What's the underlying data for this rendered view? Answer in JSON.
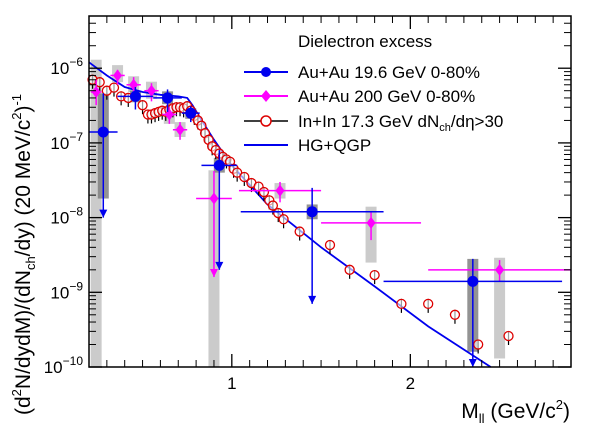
{
  "chart_data": {
    "type": "scatter",
    "title": "",
    "xlabel_main": "M",
    "xlabel_sub": "ll",
    "xlabel_unit_pre": " (GeV/c",
    "xlabel_unit_sup": "2",
    "xlabel_unit_post": ")",
    "ylabel_parts": {
      "p1": "(d",
      "p1_sup": "2",
      "p2": "N/dydM)/(dN",
      "p2_sub": "ch",
      "p3": "/dy)  (20 MeV/c",
      "p3_sup": "2",
      "p3_post": ")",
      "p3_sup2": "-1"
    },
    "xlim": [
      0.2,
      2.9
    ],
    "ylim": [
      1e-10,
      5e-06
    ],
    "yscale": "log",
    "xticks": [
      1,
      2
    ],
    "xtick_labels": [
      "1",
      "2"
    ],
    "ytick_labels": [
      {
        "base": "10",
        "exp": "−10",
        "value": 1e-10
      },
      {
        "base": "10",
        "exp": "−9",
        "value": 1e-09
      },
      {
        "base": "10",
        "exp": "−8",
        "value": 1e-08
      },
      {
        "base": "10",
        "exp": "−7",
        "value": 1e-07
      },
      {
        "base": "10",
        "exp": "−6",
        "value": 1e-06
      }
    ],
    "legend": {
      "title": "Dielectron excess",
      "position": "top-right",
      "entries": [
        {
          "label": "Au+Au 19.6 GeV 0-80%",
          "series": "auau196"
        },
        {
          "label": "Au+Au 200 GeV 0-80%",
          "series": "auau200"
        },
        {
          "label_pre": "In+In 17.3 GeV dN",
          "label_sub": "ch",
          "label_post": "/dη>30",
          "series": "inin"
        },
        {
          "label": "HG+QGP",
          "series": "model"
        }
      ]
    },
    "series": [
      {
        "id": "auau196",
        "color": "#0000ee",
        "marker": "circle-filled",
        "points": [
          {
            "x": 0.28,
            "y": 1.4e-07,
            "xerr": 0.08,
            "ylo": 1e-08,
            "yhi": 4.6e-07,
            "arrow": true,
            "sys": [
              1.8e-08,
              4.6e-07
            ]
          },
          {
            "x": 0.46,
            "y": 4.2e-07,
            "xerr": 0.1,
            "ylo": 2.8e-07,
            "yhi": 5.6e-07,
            "sys": [
              3.5e-07,
              5e-07
            ]
          },
          {
            "x": 0.64,
            "y": 4e-07,
            "xerr": 0.08,
            "ylo": 2.6e-07,
            "yhi": 5.2e-07,
            "sys": [
              3.3e-07,
              4.9e-07
            ]
          },
          {
            "x": 0.77,
            "y": 2.5e-07,
            "xerr": 0.05,
            "ylo": 1.9e-07,
            "yhi": 3.1e-07,
            "sys": [
              2.1e-07,
              2.9e-07
            ]
          },
          {
            "x": 0.93,
            "y": 5e-08,
            "xerr": 0.1,
            "ylo": 2e-09,
            "yhi": 8e-08,
            "arrow": true,
            "sys": [
              4e-08,
              6.3e-08
            ]
          },
          {
            "x": 1.45,
            "y": 1.2e-08,
            "xerr": 0.4,
            "ylo": 7e-10,
            "yhi": 2.5e-08,
            "arrow": true,
            "sys": [
              9.5e-09,
              1.5e-08
            ]
          },
          {
            "x": 2.35,
            "y": 1.4e-09,
            "xerr": 0.5,
            "ylo": 8e-11,
            "yhi": 2.8e-09,
            "arrow": true,
            "sys": [
              1.6e-10,
              2.8e-09
            ]
          }
        ]
      },
      {
        "id": "auau200",
        "color": "#ff00ff",
        "marker": "diamond-filled",
        "points": [
          {
            "x": 0.24,
            "y": 4.8e-07,
            "xerr": 0.03,
            "ylo": 3.2e-07,
            "yhi": 7e-07,
            "sys": [
              1e-10,
              1.3e-06
            ]
          },
          {
            "x": 0.36,
            "y": 8e-07,
            "xerr": 0.04,
            "ylo": 6e-07,
            "yhi": 9.5e-07,
            "sys": [
              6.5e-07,
              1.1e-06
            ]
          },
          {
            "x": 0.45,
            "y": 6e-07,
            "xerr": 0.04,
            "ylo": 4.4e-07,
            "yhi": 7.6e-07,
            "sys": [
              4.8e-07,
              7.8e-07
            ]
          },
          {
            "x": 0.55,
            "y": 5e-07,
            "xerr": 0.04,
            "ylo": 3.6e-07,
            "yhi": 6.3e-07,
            "sys": [
              3.9e-07,
              6.6e-07
            ]
          },
          {
            "x": 0.65,
            "y": 2.4e-07,
            "xerr": 0.04,
            "ylo": 1.8e-07,
            "yhi": 3e-07,
            "sys": [
              1.8e-07,
              3.1e-07
            ]
          },
          {
            "x": 0.71,
            "y": 1.5e-07,
            "xerr": 0.04,
            "ylo": 1.1e-07,
            "yhi": 1.9e-07,
            "sys": [
              1.2e-07,
              1.9e-07
            ]
          },
          {
            "x": 0.9,
            "y": 1.8e-08,
            "xerr": 0.1,
            "ylo": 1.6e-09,
            "yhi": 4.2e-08,
            "arrow": true,
            "sys": [
              1e-10,
              4.3e-08
            ]
          },
          {
            "x": 1.27,
            "y": 2.3e-08,
            "xerr": 0.23,
            "ylo": 1.6e-08,
            "yhi": 3e-08,
            "sys": [
              1.8e-08,
              2.9e-08
            ]
          },
          {
            "x": 1.78,
            "y": 8.5e-09,
            "xerr": 0.28,
            "ylo": 5e-09,
            "yhi": 1.2e-08,
            "sys": [
              2.5e-09,
              1.4e-08
            ]
          },
          {
            "x": 2.5,
            "y": 2e-09,
            "xerr": 0.4,
            "ylo": 1.4e-09,
            "yhi": 2.7e-09,
            "sys": [
              1.3e-10,
              2.9e-09
            ]
          }
        ]
      },
      {
        "id": "inin",
        "color": "#dd0000",
        "marker": "circle-open",
        "points": [
          {
            "x": 0.22,
            "y": 7e-07
          },
          {
            "x": 0.26,
            "y": 6.5e-07
          },
          {
            "x": 0.3,
            "y": 5e-07
          },
          {
            "x": 0.34,
            "y": 5.5e-07
          },
          {
            "x": 0.38,
            "y": 4.2e-07
          },
          {
            "x": 0.42,
            "y": 4e-07
          },
          {
            "x": 0.5,
            "y": 3.2e-07
          },
          {
            "x": 0.53,
            "y": 2.4e-07
          },
          {
            "x": 0.55,
            "y": 2.4e-07
          },
          {
            "x": 0.57,
            "y": 2.5e-07
          },
          {
            "x": 0.59,
            "y": 2.6e-07
          },
          {
            "x": 0.61,
            "y": 2.7e-07
          },
          {
            "x": 0.63,
            "y": 2.6e-07
          },
          {
            "x": 0.65,
            "y": 2.8e-07
          },
          {
            "x": 0.67,
            "y": 2.9e-07
          },
          {
            "x": 0.69,
            "y": 3e-07
          },
          {
            "x": 0.71,
            "y": 3e-07
          },
          {
            "x": 0.73,
            "y": 2.9e-07
          },
          {
            "x": 0.75,
            "y": 3.1e-07
          },
          {
            "x": 0.77,
            "y": 2.7e-07
          },
          {
            "x": 0.79,
            "y": 2.3e-07
          },
          {
            "x": 0.81,
            "y": 2e-07
          },
          {
            "x": 0.83,
            "y": 1.7e-07
          },
          {
            "x": 0.85,
            "y": 1.35e-07
          },
          {
            "x": 0.87,
            "y": 1.1e-07
          },
          {
            "x": 0.89,
            "y": 9e-08
          },
          {
            "x": 0.91,
            "y": 8e-08
          },
          {
            "x": 0.93,
            "y": 7.2e-08
          },
          {
            "x": 0.95,
            "y": 6.5e-08
          },
          {
            "x": 0.97,
            "y": 6e-08
          },
          {
            "x": 0.99,
            "y": 5.6e-08
          },
          {
            "x": 1.01,
            "y": 4.5e-08
          },
          {
            "x": 1.03,
            "y": 4e-08
          },
          {
            "x": 1.07,
            "y": 3.5e-08
          },
          {
            "x": 1.11,
            "y": 2.9e-08
          },
          {
            "x": 1.15,
            "y": 2.6e-08
          },
          {
            "x": 1.18,
            "y": 2.2e-08
          },
          {
            "x": 1.21,
            "y": 1.7e-08
          },
          {
            "x": 1.23,
            "y": 1.45e-08
          },
          {
            "x": 1.26,
            "y": 1.15e-08
          },
          {
            "x": 1.29,
            "y": 9.5e-09
          },
          {
            "x": 1.38,
            "y": 6.5e-09
          },
          {
            "x": 1.55,
            "y": 4.3e-09
          },
          {
            "x": 1.66,
            "y": 2e-09
          },
          {
            "x": 1.8,
            "y": 1.7e-09
          },
          {
            "x": 1.95,
            "y": 7e-10
          },
          {
            "x": 2.1,
            "y": 7e-10
          },
          {
            "x": 2.25,
            "y": 5e-10
          },
          {
            "x": 2.38,
            "y": 2e-10
          },
          {
            "x": 2.55,
            "y": 2.6e-10
          }
        ]
      },
      {
        "id": "model",
        "color": "#0000ee",
        "marker": "line",
        "points": [
          {
            "x": 0.2,
            "y": 1.2e-06
          },
          {
            "x": 0.3,
            "y": 8e-07
          },
          {
            "x": 0.4,
            "y": 5.6e-07
          },
          {
            "x": 0.5,
            "y": 4.8e-07
          },
          {
            "x": 0.6,
            "y": 4.4e-07
          },
          {
            "x": 0.7,
            "y": 4.2e-07
          },
          {
            "x": 0.75,
            "y": 4e-07
          },
          {
            "x": 0.78,
            "y": 3.2e-07
          },
          {
            "x": 0.82,
            "y": 2.2e-07
          },
          {
            "x": 0.9,
            "y": 1.1e-07
          },
          {
            "x": 1.0,
            "y": 5e-08
          },
          {
            "x": 1.2,
            "y": 1.5e-08
          },
          {
            "x": 1.5,
            "y": 4e-09
          },
          {
            "x": 1.8,
            "y": 1.2e-09
          },
          {
            "x": 2.1,
            "y": 3.5e-10
          },
          {
            "x": 2.45,
            "y": 9e-11
          }
        ]
      }
    ]
  }
}
